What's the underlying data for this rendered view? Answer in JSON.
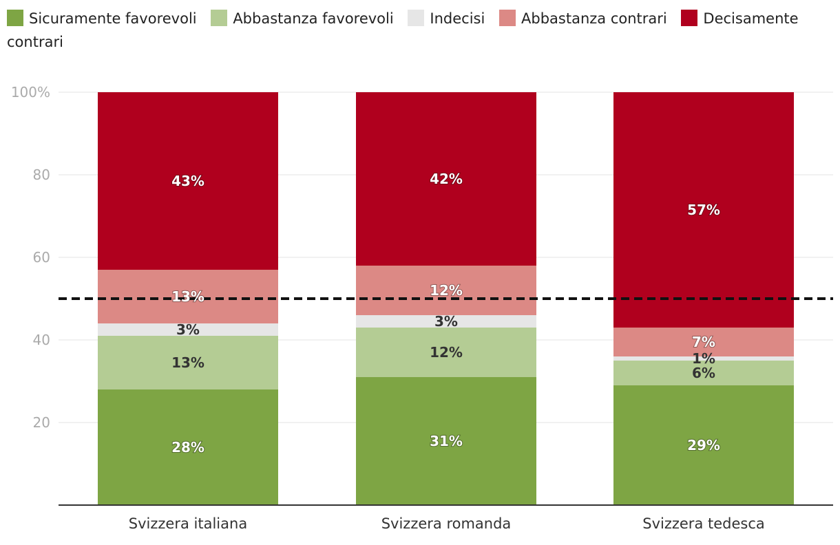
{
  "chart_data": {
    "type": "bar",
    "stacked": true,
    "categories": [
      "Svizzera italiana",
      "Svizzera romanda",
      "Svizzera tedesca"
    ],
    "series": [
      {
        "name": "Sicuramente favorevoli",
        "color": "#7ea544",
        "label_color": "#ffffff",
        "values": [
          28,
          31,
          29
        ],
        "labels": [
          "28%",
          "31%",
          "29%"
        ]
      },
      {
        "name": "Abbastanza favorevoli",
        "color": "#b4cc94",
        "label_color": "#333333",
        "values": [
          13,
          12,
          6
        ],
        "labels": [
          "13%",
          "12%",
          "6%"
        ]
      },
      {
        "name": "Indecisi",
        "color": "#e6e6e6",
        "label_color": "#333333",
        "values": [
          3,
          3,
          1
        ],
        "labels": [
          "3%",
          "3%",
          "1%"
        ]
      },
      {
        "name": "Abbastanza contrari",
        "color": "#dc8985",
        "label_color": "#ffffff",
        "values": [
          13,
          12,
          7
        ],
        "labels": [
          "13%",
          "12%",
          "7%"
        ]
      },
      {
        "name": "Decisamente contrari",
        "color": "#b0001e",
        "label_color": "#ffffff",
        "values": [
          43,
          42,
          57
        ],
        "labels": [
          "43%",
          "42%",
          "57%"
        ]
      }
    ],
    "ylim": [
      0,
      100
    ],
    "yticks": [
      20,
      40,
      60,
      80,
      100
    ],
    "ytick_labels": [
      "20",
      "40",
      "60",
      "80",
      "100%"
    ],
    "reference_line": 50,
    "legend_position": "top-left",
    "xlabel": "",
    "ylabel": ""
  }
}
